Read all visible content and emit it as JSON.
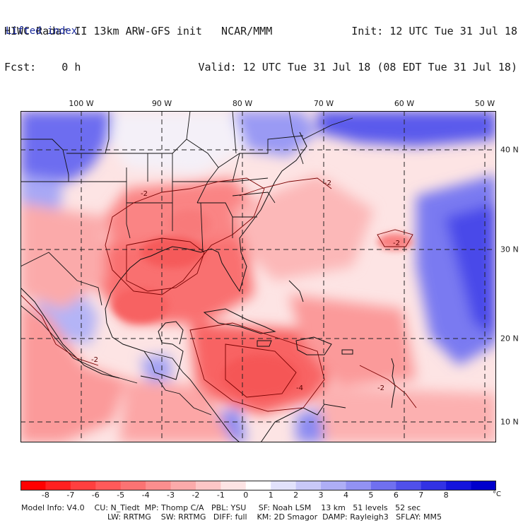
{
  "header": {
    "line1_left": "HIWC Radar II 13km ARW-GFS init   NCAR/MMM",
    "line2_left": "Fcst:    0 h",
    "line1_right": "Init: 12 UTC Tue 31 Jul 18",
    "line2_right": "Valid: 12 UTC Tue 31 Jul 18 (08 EDT Tue 31 Jul 18)",
    "field": "Lifted index"
  },
  "longitudes": [
    "100 W",
    "90 W",
    "80 W",
    "70 W",
    "60 W",
    "50 W"
  ],
  "latitudes": [
    "40 N",
    "30 N",
    "20 N",
    "10 N"
  ],
  "contour_labels": [
    "-2",
    "-2",
    "-2",
    "-2",
    "-4",
    "-2"
  ],
  "colorbar": {
    "labels": [
      "-8",
      "-7",
      "-6",
      "-5",
      "-4",
      "-3",
      "-2",
      "-1",
      "0",
      "1",
      "2",
      "3",
      "4",
      "5",
      "6",
      "7",
      "8"
    ],
    "unit": "°C",
    "colors": [
      "#ff0000",
      "#ff2020",
      "#ff3f3f",
      "#ff5a5a",
      "#fb7373",
      "#fb8e8e",
      "#fcaaaa",
      "#fdc6c6",
      "#fde4e4",
      "#ffffff",
      "#e2e2fb",
      "#c8c8f8",
      "#aeaef6",
      "#9292f3",
      "#7070ef",
      "#5050ea",
      "#3232e4",
      "#1414dc",
      "#0000cc"
    ]
  },
  "footer": {
    "line1": "Model Info: V4.0    CU: N_Tiedt  MP: Thomp C/A   PBL: YSU     SF: Noah LSM    13 km   51 levels   52 sec",
    "line2": "LW: RRTMG    SW: RRTMG   DIFF: full    KM: 2D Smagor  DAMP: Rayleigh3   SFLAY: MM5"
  }
}
